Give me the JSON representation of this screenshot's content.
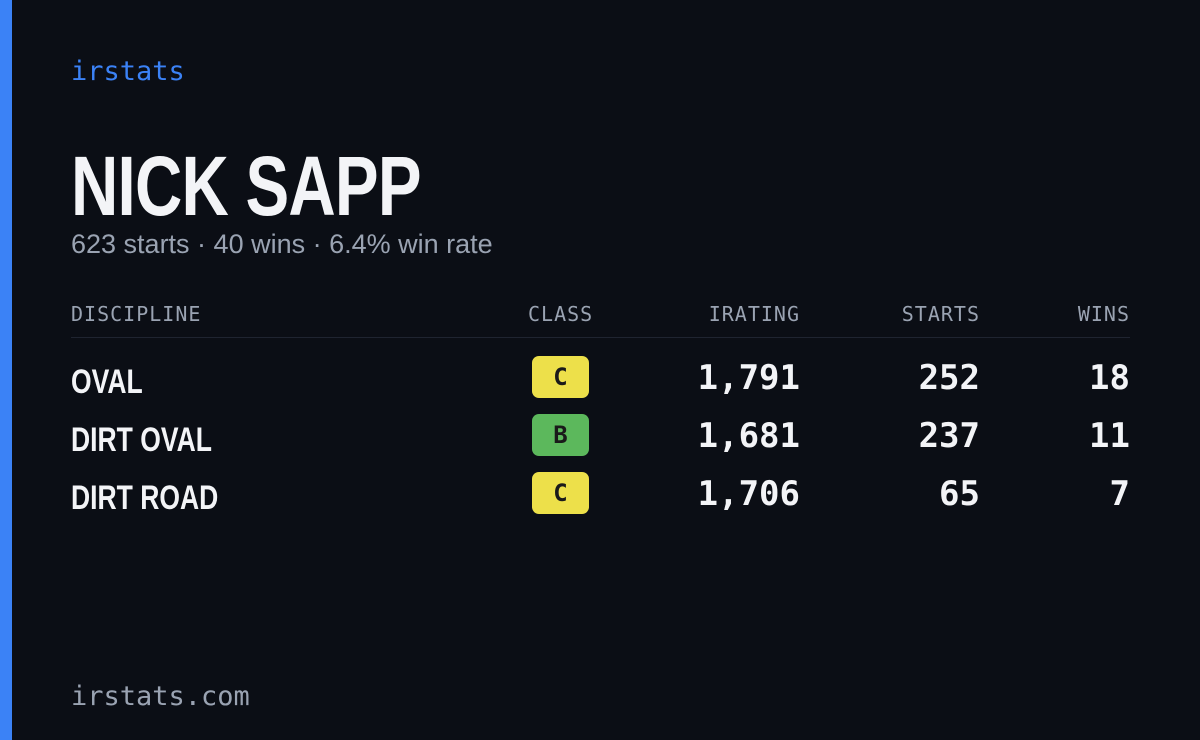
{
  "header": {
    "brand": "irstats",
    "name": "NICK SAPP",
    "summary": "623 starts · 40 wins · 6.4% win rate"
  },
  "table": {
    "columns": [
      "DISCIPLINE",
      "CLASS",
      "IRATING",
      "STARTS",
      "WINS"
    ],
    "rows": [
      {
        "discipline": "OVAL",
        "class": "C",
        "class_color": "#ede04a",
        "irating": "1,791",
        "starts": "252",
        "wins": "18"
      },
      {
        "discipline": "DIRT OVAL",
        "class": "B",
        "class_color": "#5cb85c",
        "irating": "1,681",
        "starts": "237",
        "wins": "11"
      },
      {
        "discipline": "DIRT ROAD",
        "class": "C",
        "class_color": "#ede04a",
        "irating": "1,706",
        "starts": "65",
        "wins": "7"
      }
    ]
  },
  "footer": {
    "site": "irstats.com"
  }
}
